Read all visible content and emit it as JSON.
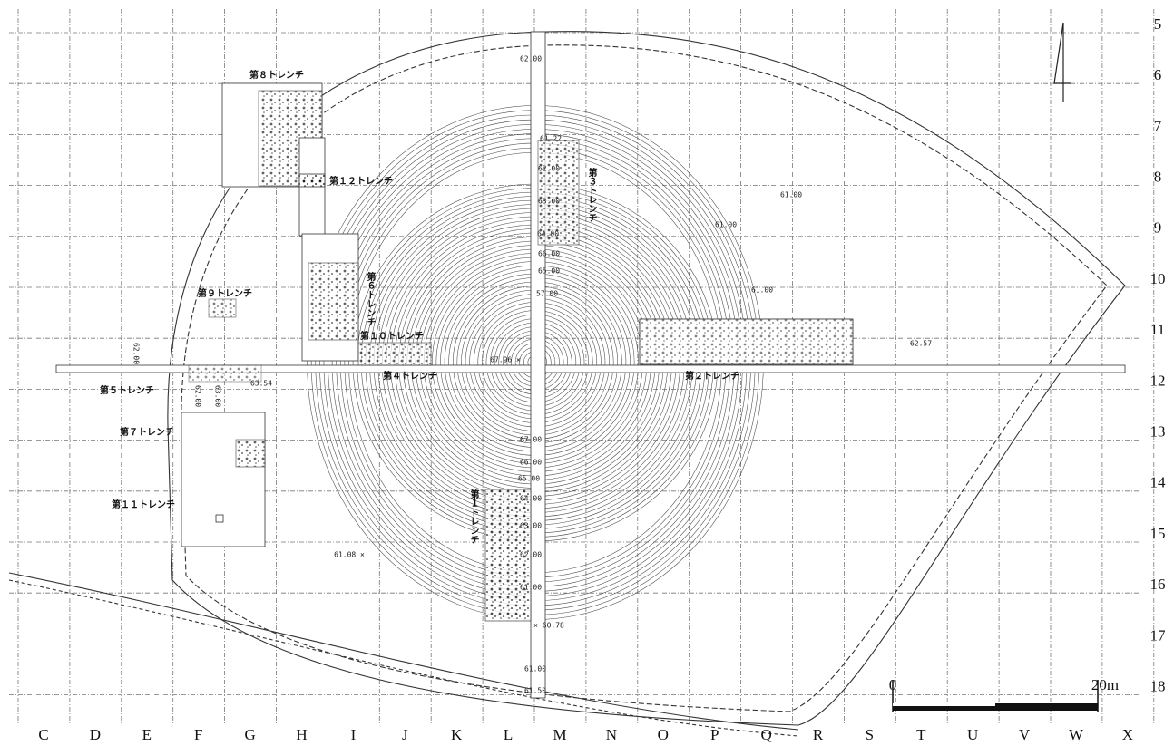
{
  "columns": [
    "C",
    "D",
    "E",
    "F",
    "G",
    "H",
    "I",
    "J",
    "K",
    "L",
    "M",
    "N",
    "O",
    "P",
    "Q",
    "R",
    "S",
    "T",
    "U",
    "V",
    "W",
    "X"
  ],
  "rows": [
    "5",
    "6",
    "7",
    "8",
    "9",
    "10",
    "11",
    "12",
    "13",
    "14",
    "15",
    "16",
    "17",
    "18"
  ],
  "trenches": [
    "第８トレンチ",
    "第１２トレンチ",
    "第３トレンチ",
    "第６トレンチ",
    "第９トレンチ",
    "第１０トレンチ",
    "第４トレンチ",
    "第２トレンチ",
    "第５トレンチ",
    "第７トレンチ",
    "第１１トレンチ",
    "第１トレンチ"
  ],
  "elevations": [
    "62.00",
    "61.22",
    "62.00",
    "63.00",
    "64.00",
    "66.00",
    "65.00",
    "57.00",
    "61.00",
    "61.00",
    "61.00",
    "62.57",
    "67.96 ×",
    "62.00",
    "62.00",
    "63.00",
    "63.54",
    "67.00",
    "66.00",
    "65.00",
    "64.00",
    "63.00",
    "62.00",
    "61.00",
    "× 60.78",
    "61.00",
    "61.50",
    "61.08 ×"
  ],
  "scale": {
    "start": "0",
    "end": "20m"
  }
}
